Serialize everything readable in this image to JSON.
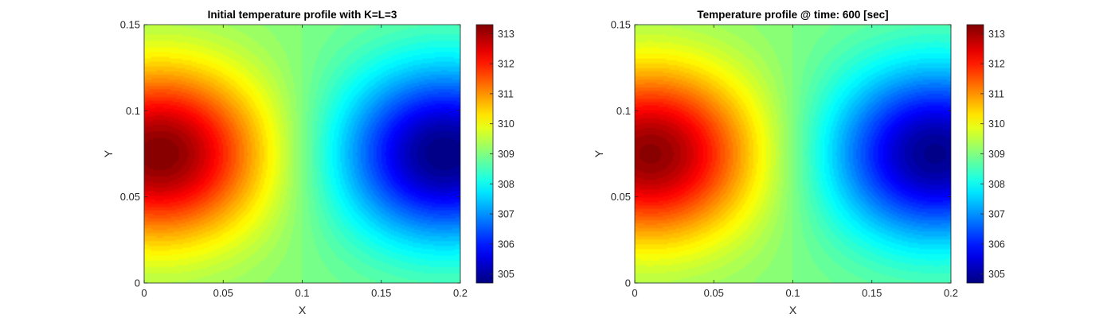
{
  "chart_data": [
    {
      "type": "heatmap",
      "title": "Initial temperature profile with K=L=3",
      "xlabel": "X",
      "ylabel": "Y",
      "xlim": [
        0,
        0.2
      ],
      "ylim": [
        0,
        0.15
      ],
      "xticks": [
        "0",
        "0.05",
        "0.1",
        "0.15",
        "0.2"
      ],
      "yticks": [
        "0",
        "0.05",
        "0.1",
        "0.15"
      ],
      "xtick_values": [
        0,
        0.05,
        0.1,
        0.15,
        0.2
      ],
      "ytick_values": [
        0,
        0.05,
        0.1,
        0.15
      ],
      "colormap": "jet",
      "clim": [
        304.7,
        313.3
      ],
      "colorbar_ticks": [
        "305",
        "306",
        "307",
        "308",
        "309",
        "310",
        "311",
        "312",
        "313"
      ],
      "colorbar_tick_values": [
        305,
        306,
        307,
        308,
        309,
        310,
        311,
        312,
        313
      ],
      "field": {
        "hot_spot": {
          "x": 0.01,
          "y": 0.075,
          "value": 313.3
        },
        "cold_spot": {
          "x": 0.19,
          "y": 0.075,
          "value": 304.7
        },
        "background_value": 309
      }
    },
    {
      "type": "heatmap",
      "title": "Temperature profile @ time: 600 [sec]",
      "xlabel": "X",
      "ylabel": "Y",
      "xlim": [
        0,
        0.2
      ],
      "ylim": [
        0,
        0.15
      ],
      "xticks": [
        "0",
        "0.05",
        "0.1",
        "0.15",
        "0.2"
      ],
      "yticks": [
        "0",
        "0.05",
        "0.1",
        "0.15"
      ],
      "xtick_values": [
        0,
        0.05,
        0.1,
        0.15,
        0.2
      ],
      "ytick_values": [
        0,
        0.05,
        0.1,
        0.15
      ],
      "colormap": "jet",
      "clim": [
        304.7,
        313.3
      ],
      "colorbar_ticks": [
        "305",
        "306",
        "307",
        "308",
        "309",
        "310",
        "311",
        "312",
        "313"
      ],
      "colorbar_tick_values": [
        305,
        306,
        307,
        308,
        309,
        310,
        311,
        312,
        313
      ],
      "field": {
        "hot_spot": {
          "x": 0.01,
          "y": 0.075,
          "value": 313.2
        },
        "cold_spot": {
          "x": 0.19,
          "y": 0.075,
          "value": 304.8
        },
        "background_value": 309
      }
    }
  ]
}
